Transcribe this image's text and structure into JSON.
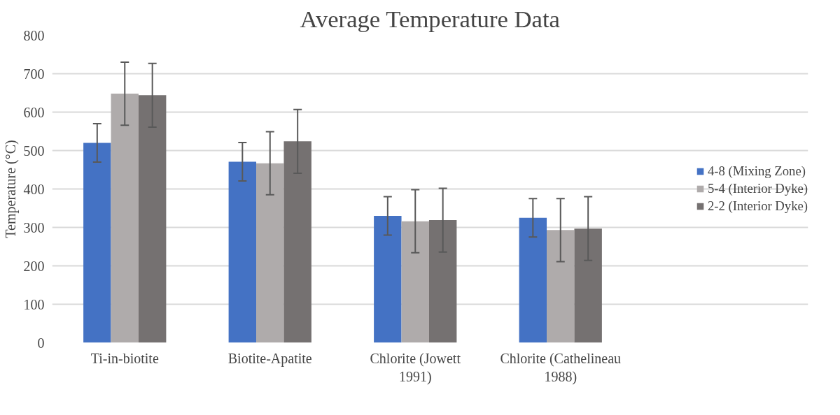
{
  "chart_data": {
    "type": "bar",
    "title": "Average Temperature Data",
    "ylabel": "Temperature (°C)",
    "categories": [
      "Ti-in-biotite",
      "Biotite-Apatite",
      "Chlorite (Jowett 1991)",
      "Chlorite (Cathelineau 1988)"
    ],
    "series": [
      {
        "name": "4-8 (Mixing Zone)",
        "color": "#4472c4",
        "values": [
          520,
          471,
          330,
          325
        ],
        "errors": [
          50,
          50,
          50,
          50
        ]
      },
      {
        "name": "5-4 (Interior Dyke)",
        "color": "#afabab",
        "values": [
          648,
          467,
          316,
          293
        ],
        "errors": [
          82,
          82,
          82,
          82
        ]
      },
      {
        "name": "2-2 (Interior Dyke)",
        "color": "#757171",
        "values": [
          644,
          524,
          319,
          297
        ],
        "errors": [
          83,
          83,
          83,
          83
        ]
      }
    ],
    "ylim": [
      0,
      800
    ],
    "yticks": [
      0,
      100,
      200,
      300,
      400,
      500,
      600,
      700,
      800
    ],
    "grid": "y",
    "legend": "right"
  }
}
